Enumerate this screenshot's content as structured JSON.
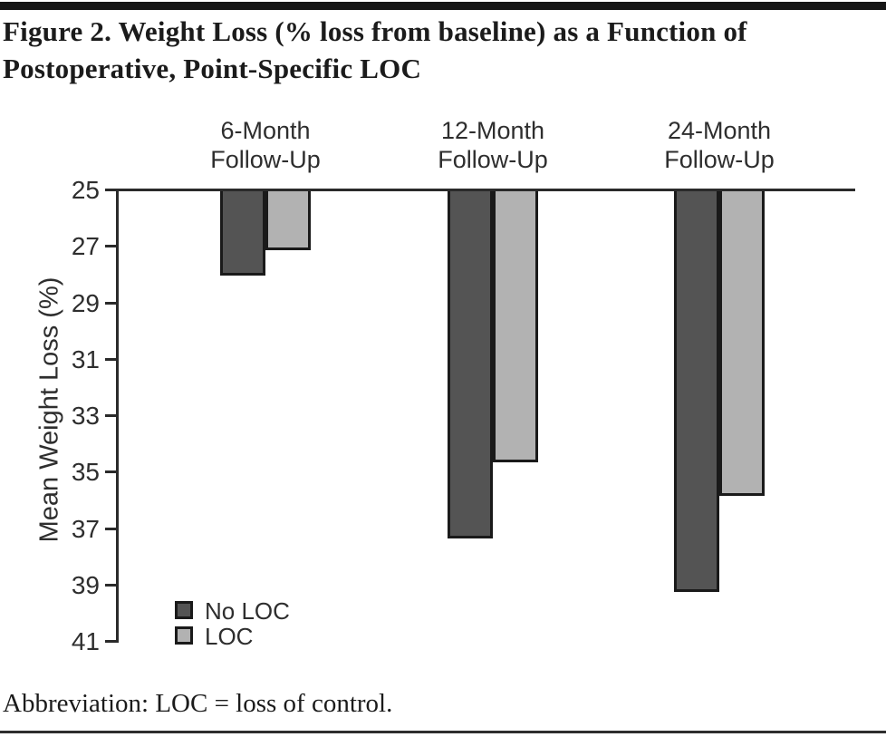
{
  "figure": {
    "title_line1": "Figure 2. Weight Loss (% loss from baseline) as a Function of",
    "title_line2": "Postoperative, Point-Specific LOC",
    "footnote": "Abbreviation: LOC = loss of control."
  },
  "chart_data": {
    "type": "bar",
    "title": "Figure 2. Weight Loss (% loss from baseline) as a Function of Postoperative, Point-Specific LOC",
    "ylabel": "Mean Weight Loss (%)",
    "y_axis": {
      "min": 25,
      "max": 41,
      "ticks": [
        25,
        27,
        29,
        31,
        33,
        35,
        37,
        39,
        41
      ],
      "inverted": true
    },
    "baseline": 25,
    "grid": false,
    "categories": [
      "6-Month\nFollow-Up",
      "12-Month\nFollow-Up",
      "24-Month\nFollow-Up"
    ],
    "series": [
      {
        "name": "No LOC",
        "color": "#545454",
        "values": [
          28.0,
          37.3,
          39.2
        ]
      },
      {
        "name": "LOC",
        "color": "#b2b2b2",
        "values": [
          27.1,
          34.6,
          35.8
        ]
      }
    ],
    "legend_position": "bottom-left"
  }
}
